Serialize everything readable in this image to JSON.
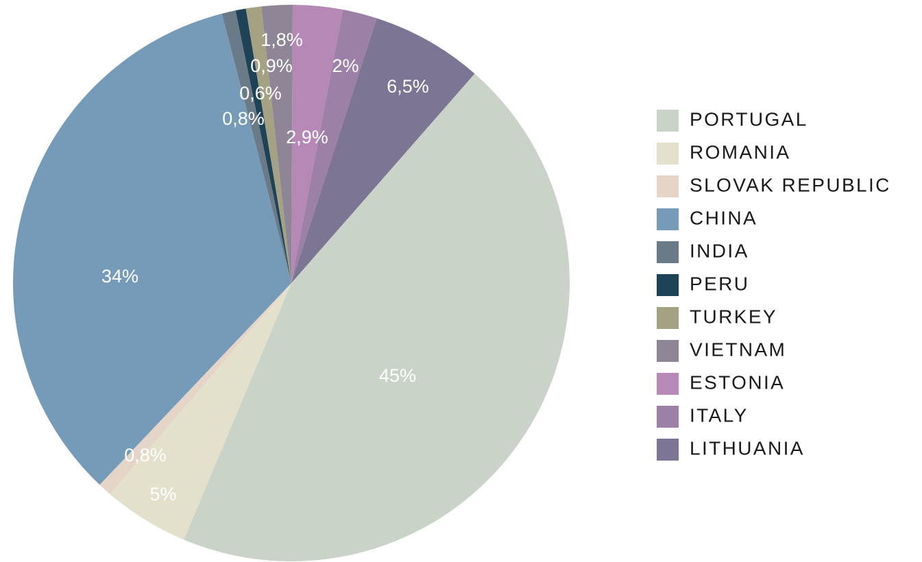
{
  "chart_data": {
    "type": "pie",
    "categories": [
      "PORTUGAL",
      "ROMANIA",
      "SLOVAK REPUBLIC",
      "CHINA",
      "INDIA",
      "PERU",
      "TURKEY",
      "VIETNAM",
      "ESTONIA",
      "ITALY",
      "LITHUANIA"
    ],
    "values": [
      45,
      5,
      0.8,
      34,
      0.8,
      0.6,
      0.9,
      1.8,
      2.9,
      2,
      6.5
    ],
    "value_labels": [
      "45%",
      "5%",
      "0,8%",
      "34%",
      "0,8%",
      "0,6%",
      "0,9%",
      "1,8%",
      "2,9%",
      "2%",
      "6,5%"
    ],
    "colors": [
      "#c9d3c8",
      "#e3e1cc",
      "#e5d4c8",
      "#769bb9",
      "#6b7a87",
      "#1e4256",
      "#a4a283",
      "#8e8596",
      "#b588b5",
      "#9c80a6",
      "#7c7593"
    ],
    "legend": "right"
  }
}
